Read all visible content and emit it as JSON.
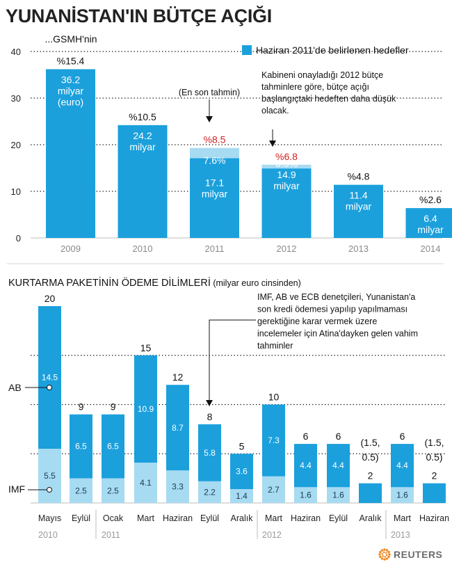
{
  "title": "YUNANİSTAN'IN BÜTÇE AÇIĞI",
  "colors": {
    "dark": "#1ba0dc",
    "light": "#a7dbf2",
    "red": "#d01f1f"
  },
  "chart_data": [
    {
      "type": "bar",
      "ylim": [
        0,
        40
      ],
      "yticks": [
        0,
        10,
        20,
        30,
        40
      ],
      "grid": "dotted",
      "legend": {
        "label": "Haziran 2011'de belirlenen hedefler",
        "position": "top-right"
      },
      "categories": [
        "2009",
        "2010",
        "2011",
        "2012",
        "2013",
        "2014"
      ],
      "series": [
        {
          "name": "Haziran 2011'de belirlenen hedefler",
          "values": [
            36.2,
            24.2,
            17.1,
            14.9,
            11.4,
            6.4
          ]
        },
        {
          "values": [
            null,
            null,
            19.3,
            15.7,
            null,
            null
          ]
        }
      ],
      "pct_labels": [
        "%15.4",
        "%10.5",
        "%8.5",
        "%6.8",
        "%4.8",
        "%2.6"
      ],
      "pct_red": [
        false,
        false,
        true,
        true,
        false,
        false
      ],
      "gdp_label": "...GSMH'nin",
      "inner_labels": [
        [
          "36.2",
          "milyar",
          "(euro)"
        ],
        [
          "24.2",
          "milyar"
        ],
        [
          "7.6%",
          "",
          "17.1",
          "milyar"
        ],
        [
          "6.5%",
          "14.9",
          "milyar"
        ],
        [
          "11.4",
          "milyar"
        ],
        [
          "6.4",
          "milyar"
        ]
      ],
      "annotation_latest": "(En son tahmin)",
      "annotation_cabinet": [
        "Kabineni onayladığı 2012 bütçe",
        "tahminlere göre, bütçe açığı",
        "başlangıçtaki hedeften daha düşük",
        "olacak."
      ]
    },
    {
      "type": "bar",
      "title": "KURTARMA PAKETİNİN ÖDEME DİLİMLERİ",
      "subtitle": "(milyar euro cinsinden)",
      "ylim": [
        0,
        20
      ],
      "series_labels": [
        "AB",
        "IMF"
      ],
      "categories": [
        "Mayıs",
        "Eylül",
        "Ocak",
        "Mart",
        "Haziran",
        "Eylül",
        "Aralık",
        "Mart",
        "Haziran",
        "Eylül",
        "Aralık",
        "Mart",
        "Haziran"
      ],
      "series": [
        {
          "name": "AB",
          "values": [
            14.5,
            6.5,
            6.5,
            10.9,
            8.7,
            5.8,
            3.6,
            7.3,
            4.4,
            4.4,
            null,
            4.4,
            null
          ]
        },
        {
          "name": "IMF",
          "values": [
            5.5,
            2.5,
            2.5,
            4.1,
            3.3,
            2.2,
            1.4,
            2.7,
            1.6,
            1.6,
            null,
            1.6,
            null
          ]
        }
      ],
      "totals": [
        20,
        9,
        9,
        15,
        12,
        8,
        5,
        10,
        6,
        6,
        2,
        6,
        2
      ],
      "total_labels": [
        "20",
        "9",
        "9",
        "15",
        "12",
        "8",
        "5",
        "10",
        "6",
        "6",
        "2",
        "6",
        "2"
      ],
      "split_notes": [
        null,
        null,
        null,
        null,
        null,
        null,
        null,
        null,
        null,
        null,
        [
          "(1.5,",
          "0.5)"
        ],
        null,
        [
          "(1.5,",
          "0.5)"
        ]
      ],
      "years": [
        "2010",
        "2011",
        "2012",
        "2013"
      ],
      "annotation": [
        "IMF, AB ve ECB denetçileri,  Yunanistan'a",
        "son kredi ödemesi yapılıp yapılmaması",
        "gerektiğine karar vermek üzere",
        "incelemeler için Atina'dayken gelen vahim",
        "tahminler"
      ]
    }
  ],
  "branding": "REUTERS"
}
